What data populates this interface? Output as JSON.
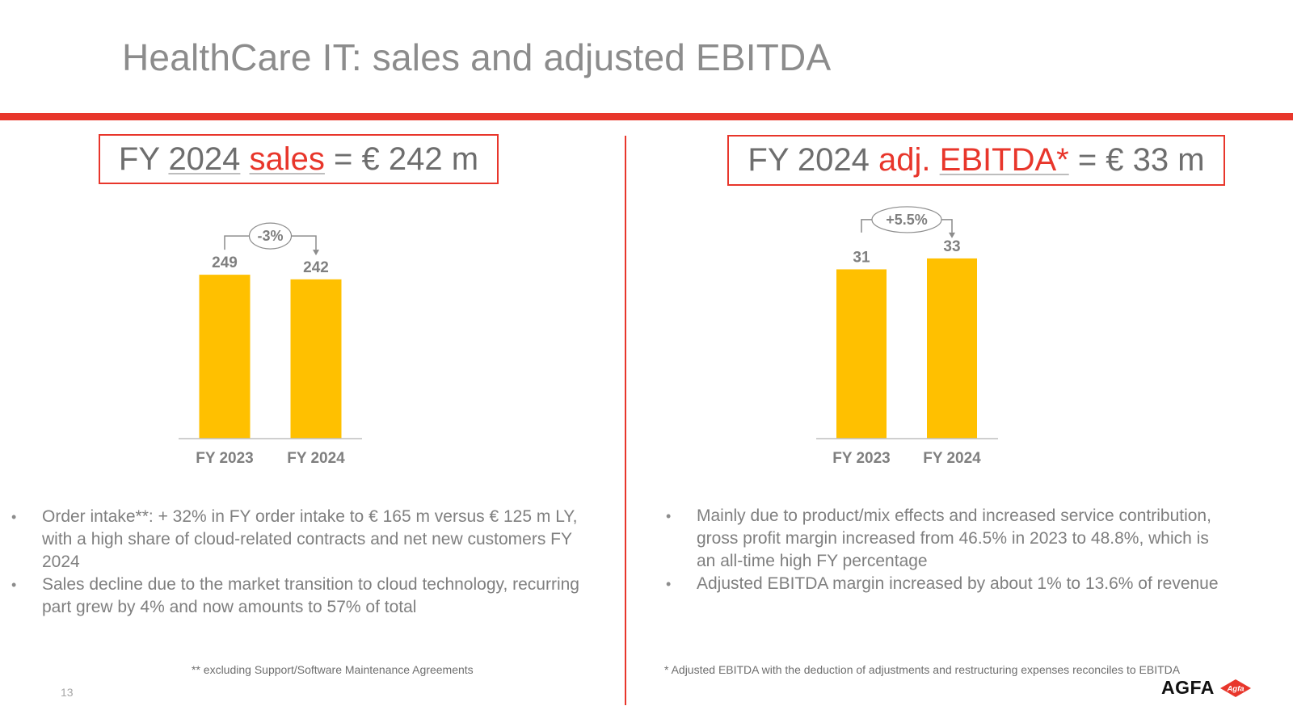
{
  "page": {
    "title": "HealthCare IT: sales and adjusted EBITDA",
    "page_number": "13"
  },
  "left": {
    "headline": {
      "pre": "FY ",
      "year": "2024",
      "space": " ",
      "keyword": "sales",
      "post": " = € 242 m"
    },
    "bullets": [
      "Order intake**: + 32% in FY order intake to € 165 m versus € 125 m LY, with a high share of cloud-related contracts and net new customers FY 2024",
      "Sales decline due to the market transition to cloud technology, recurring part grew by 4% and now amounts to 57% of total"
    ],
    "footnote": "** excluding Support/Software Maintenance Agreements"
  },
  "right": {
    "headline": {
      "pre": "FY 2024 ",
      "keyword1": "adj.",
      "space": " ",
      "keyword2": "EBITDA*",
      "post": " = € 33 m"
    },
    "bullets": [
      "Mainly due to product/mix effects and increased service contribution, gross profit margin increased from 46.5% in 2023 to 48.8%, which is an all-time high FY percentage",
      "Adjusted EBITDA margin increased by about 1% to 13.6% of revenue"
    ],
    "footnote": "* Adjusted EBITDA with the deduction of adjustments and restructuring expenses reconciles to EBITDA"
  },
  "logo": {
    "text": "AGFA",
    "badge": "Agfa"
  },
  "colors": {
    "accent_red": "#e8362b",
    "bar_yellow": "#ffc000",
    "text_gray": "#7f7f7f"
  },
  "chart_data": [
    {
      "type": "bar",
      "categories": [
        "FY 2023",
        "FY 2024"
      ],
      "values": [
        249,
        242
      ],
      "data_labels": [
        "249",
        "242"
      ],
      "change_label": "-3%",
      "ylim": [
        0,
        270
      ],
      "color": "#ffc000"
    },
    {
      "type": "bar",
      "categories": [
        "FY 2023",
        "FY 2024"
      ],
      "values": [
        31,
        33
      ],
      "data_labels": [
        "31",
        "33"
      ],
      "change_label": "+5.5%",
      "ylim": [
        0,
        35.8
      ],
      "color": "#ffc000"
    }
  ]
}
